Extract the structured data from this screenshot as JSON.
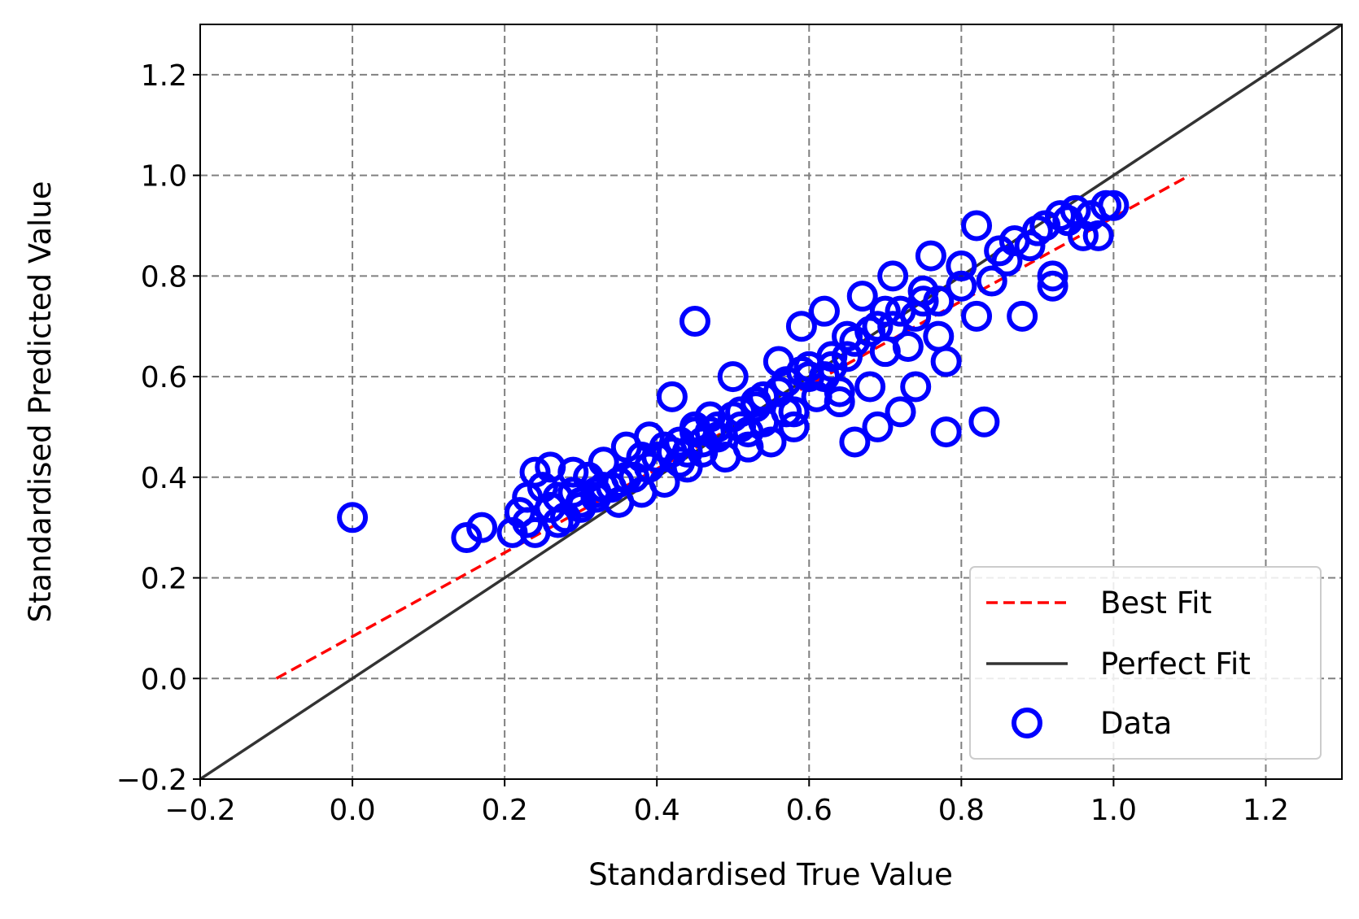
{
  "chart_data": {
    "type": "scatter",
    "xlabel": "Standardised True Value",
    "ylabel": "Standardised Predicted Value",
    "xlim": [
      -0.2,
      1.3
    ],
    "ylim": [
      -0.2,
      1.3
    ],
    "x_ticks": [
      -0.2,
      0.0,
      0.2,
      0.4,
      0.6,
      0.8,
      1.0,
      1.2
    ],
    "y_ticks": [
      -0.2,
      0.0,
      0.2,
      0.4,
      0.6,
      0.8,
      1.0,
      1.2
    ],
    "x_tick_labels": [
      "−0.2",
      "0.0",
      "0.2",
      "0.4",
      "0.6",
      "0.8",
      "1.0",
      "1.2"
    ],
    "y_tick_labels": [
      "−0.2",
      "0.0",
      "0.2",
      "0.4",
      "0.6",
      "0.8",
      "1.0",
      "1.2"
    ],
    "grid": true,
    "legend_position": "lower-right",
    "series": [
      {
        "name": "Best Fit",
        "kind": "line",
        "style": "dashed",
        "color": "#ff0000",
        "x": [
          -0.1,
          1.1
        ],
        "y": [
          0.0,
          1.0
        ]
      },
      {
        "name": "Perfect Fit",
        "kind": "line",
        "style": "solid",
        "color": "#333333",
        "x": [
          -0.2,
          1.3
        ],
        "y": [
          -0.2,
          1.3
        ]
      },
      {
        "name": "Data",
        "kind": "scatter",
        "marker": "hollow-circle",
        "color": "#0000ff",
        "x": [
          0.0,
          0.15,
          0.17,
          0.21,
          0.22,
          0.23,
          0.24,
          0.25,
          0.26,
          0.27,
          0.28,
          0.29,
          0.3,
          0.31,
          0.32,
          0.33,
          0.34,
          0.35,
          0.36,
          0.37,
          0.38,
          0.39,
          0.4,
          0.41,
          0.42,
          0.43,
          0.44,
          0.45,
          0.45,
          0.46,
          0.47,
          0.48,
          0.49,
          0.5,
          0.51,
          0.52,
          0.53,
          0.54,
          0.55,
          0.56,
          0.57,
          0.58,
          0.59,
          0.6,
          0.61,
          0.62,
          0.63,
          0.64,
          0.65,
          0.66,
          0.67,
          0.68,
          0.69,
          0.7,
          0.71,
          0.72,
          0.73,
          0.74,
          0.75,
          0.76,
          0.77,
          0.78,
          0.78,
          0.8,
          0.82,
          0.82,
          0.83,
          0.85,
          0.87,
          0.88,
          0.9,
          0.92,
          0.92,
          0.94,
          0.95,
          0.96,
          0.97,
          0.98,
          0.99,
          1.0,
          0.24,
          0.27,
          0.3,
          0.33,
          0.36,
          0.39,
          0.42,
          0.45,
          0.48,
          0.51,
          0.54,
          0.57,
          0.6,
          0.63,
          0.66,
          0.69,
          0.72,
          0.75,
          0.23,
          0.26,
          0.29,
          0.32,
          0.35,
          0.38,
          0.41,
          0.44,
          0.47,
          0.5,
          0.53,
          0.56,
          0.59,
          0.62,
          0.65,
          0.68,
          0.71,
          0.74,
          0.77,
          0.8,
          0.84,
          0.86,
          0.89,
          0.91,
          0.93,
          0.43,
          0.46,
          0.52,
          0.58,
          0.64,
          0.7
        ],
        "y": [
          0.32,
          0.28,
          0.3,
          0.29,
          0.33,
          0.36,
          0.41,
          0.38,
          0.42,
          0.36,
          0.32,
          0.41,
          0.34,
          0.4,
          0.37,
          0.43,
          0.38,
          0.35,
          0.46,
          0.4,
          0.37,
          0.48,
          0.44,
          0.39,
          0.56,
          0.47,
          0.42,
          0.71,
          0.5,
          0.45,
          0.52,
          0.48,
          0.44,
          0.6,
          0.5,
          0.46,
          0.55,
          0.51,
          0.47,
          0.63,
          0.53,
          0.5,
          0.7,
          0.6,
          0.56,
          0.73,
          0.62,
          0.55,
          0.68,
          0.47,
          0.76,
          0.58,
          0.5,
          0.73,
          0.8,
          0.53,
          0.66,
          0.58,
          0.77,
          0.84,
          0.68,
          0.63,
          0.49,
          0.82,
          0.9,
          0.72,
          0.51,
          0.85,
          0.87,
          0.72,
          0.89,
          0.78,
          0.8,
          0.91,
          0.93,
          0.88,
          0.92,
          0.88,
          0.94,
          0.94,
          0.29,
          0.31,
          0.35,
          0.38,
          0.4,
          0.42,
          0.45,
          0.49,
          0.5,
          0.53,
          0.56,
          0.59,
          0.62,
          0.64,
          0.67,
          0.7,
          0.73,
          0.75,
          0.31,
          0.34,
          0.37,
          0.36,
          0.39,
          0.44,
          0.46,
          0.45,
          0.49,
          0.52,
          0.54,
          0.57,
          0.61,
          0.6,
          0.64,
          0.69,
          0.7,
          0.72,
          0.75,
          0.78,
          0.79,
          0.83,
          0.86,
          0.9,
          0.92,
          0.43,
          0.47,
          0.49,
          0.53,
          0.57,
          0.65
        ]
      }
    ]
  }
}
